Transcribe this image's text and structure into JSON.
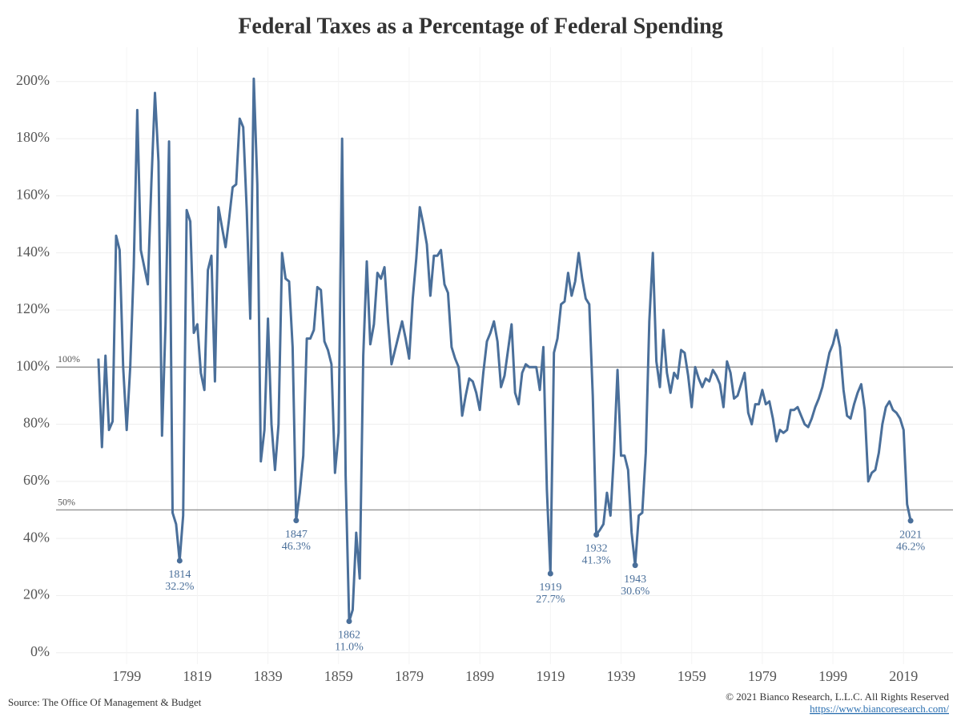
{
  "chart_data": {
    "type": "line",
    "title": "Federal Taxes as a Percentage of Federal Spending",
    "source": "Source: The Office Of Management & Budget",
    "copyright": "© 2021 Bianco Research, L.L.C. All Rights Reserved",
    "url": "https://www.biancoresearch.com/",
    "color": "#4a6f9a",
    "grid": true,
    "xlim": [
      1779,
      2033
    ],
    "ylim": [
      -4,
      212
    ],
    "xticks": [
      1799,
      1819,
      1839,
      1859,
      1879,
      1899,
      1919,
      1939,
      1959,
      1979,
      1999,
      2019
    ],
    "yticks": [
      {
        "value": 0,
        "label": "0%"
      },
      {
        "value": 20,
        "label": "20%"
      },
      {
        "value": 40,
        "label": "40%"
      },
      {
        "value": 60,
        "label": "60%"
      },
      {
        "value": 80,
        "label": "80%"
      },
      {
        "value": 100,
        "label": "100%"
      },
      {
        "value": 120,
        "label": "120%"
      },
      {
        "value": 140,
        "label": "140%"
      },
      {
        "value": 160,
        "label": "160%"
      },
      {
        "value": 180,
        "label": "180%"
      },
      {
        "value": 200,
        "label": "200%"
      }
    ],
    "reference_lines": [
      {
        "value": 100,
        "label": "100%"
      },
      {
        "value": 50,
        "label": "50%"
      }
    ],
    "annotations": [
      {
        "x": 1814,
        "y": 32.2,
        "y_label": "32.2%"
      },
      {
        "x": 1847,
        "y": 46.3,
        "y_label": "46.3%"
      },
      {
        "x": 1862,
        "y": 11.0,
        "y_label": "11.0%"
      },
      {
        "x": 1919,
        "y": 27.7,
        "y_label": "27.7%"
      },
      {
        "x": 1932,
        "y": 41.3,
        "y_label": "41.3%"
      },
      {
        "x": 1943,
        "y": 30.6,
        "y_label": "30.6%"
      },
      {
        "x": 2021,
        "y": 46.2,
        "y_label": "46.2%"
      }
    ],
    "x": [
      1791,
      1792,
      1793,
      1794,
      1795,
      1796,
      1797,
      1798,
      1799,
      1800,
      1801,
      1802,
      1803,
      1804,
      1805,
      1806,
      1807,
      1808,
      1809,
      1810,
      1811,
      1812,
      1813,
      1814,
      1815,
      1816,
      1817,
      1818,
      1819,
      1820,
      1821,
      1822,
      1823,
      1824,
      1825,
      1826,
      1827,
      1828,
      1829,
      1830,
      1831,
      1832,
      1833,
      1834,
      1835,
      1836,
      1837,
      1838,
      1839,
      1840,
      1841,
      1842,
      1843,
      1844,
      1845,
      1846,
      1847,
      1848,
      1849,
      1850,
      1851,
      1852,
      1853,
      1854,
      1855,
      1856,
      1857,
      1858,
      1859,
      1860,
      1861,
      1862,
      1863,
      1864,
      1865,
      1866,
      1867,
      1868,
      1869,
      1870,
      1871,
      1872,
      1873,
      1874,
      1875,
      1876,
      1877,
      1878,
      1879,
      1880,
      1881,
      1882,
      1883,
      1884,
      1885,
      1886,
      1887,
      1888,
      1889,
      1890,
      1891,
      1892,
      1893,
      1894,
      1895,
      1896,
      1897,
      1898,
      1899,
      1900,
      1901,
      1902,
      1903,
      1904,
      1905,
      1906,
      1907,
      1908,
      1909,
      1910,
      1911,
      1912,
      1913,
      1914,
      1915,
      1916,
      1917,
      1918,
      1919,
      1920,
      1921,
      1922,
      1923,
      1924,
      1925,
      1926,
      1927,
      1928,
      1929,
      1930,
      1931,
      1932,
      1933,
      1934,
      1935,
      1936,
      1937,
      1938,
      1939,
      1940,
      1941,
      1942,
      1943,
      1944,
      1945,
      1946,
      1947,
      1948,
      1949,
      1950,
      1951,
      1952,
      1953,
      1954,
      1955,
      1956,
      1957,
      1958,
      1959,
      1960,
      1961,
      1962,
      1963,
      1964,
      1965,
      1966,
      1967,
      1968,
      1969,
      1970,
      1971,
      1972,
      1973,
      1974,
      1975,
      1976,
      1977,
      1978,
      1979,
      1980,
      1981,
      1982,
      1983,
      1984,
      1985,
      1986,
      1987,
      1988,
      1989,
      1990,
      1991,
      1992,
      1993,
      1994,
      1995,
      1996,
      1997,
      1998,
      1999,
      2000,
      2001,
      2002,
      2003,
      2004,
      2005,
      2006,
      2007,
      2008,
      2009,
      2010,
      2011,
      2012,
      2013,
      2014,
      2015,
      2016,
      2017,
      2018,
      2019,
      2020,
      2021
    ],
    "values": [
      103,
      72,
      104,
      78,
      81,
      146,
      141,
      100,
      78,
      100,
      135,
      190,
      141,
      135,
      129,
      165,
      196,
      172,
      76,
      115,
      179,
      49,
      45,
      32.2,
      48,
      155,
      151,
      112,
      115,
      98,
      92,
      134,
      139,
      95,
      156,
      149,
      142,
      152,
      163,
      164,
      187,
      184,
      155,
      117,
      201,
      164,
      67,
      78,
      117,
      80,
      64,
      80,
      140,
      131,
      130,
      107,
      46.3,
      56,
      69,
      110,
      110,
      113,
      128,
      127,
      109,
      106,
      101,
      63,
      77,
      180,
      62,
      11.0,
      15,
      42,
      26,
      104,
      137,
      108,
      115,
      133,
      131,
      135,
      116,
      101,
      106,
      111,
      116,
      110,
      103,
      124,
      138,
      156,
      150,
      143,
      125,
      139,
      139,
      141,
      129,
      126,
      107,
      103,
      100,
      83,
      90,
      96,
      95,
      91,
      85,
      98,
      109,
      112,
      116,
      109,
      93,
      97,
      106,
      115,
      91,
      87,
      98,
      101,
      100,
      100,
      100,
      92,
      107,
      57,
      27.7,
      105,
      110,
      122,
      123,
      133,
      125,
      130,
      140,
      131,
      124,
      122,
      90,
      41.3,
      43,
      45,
      56,
      48,
      70,
      99,
      69,
      69,
      64,
      42,
      30.6,
      48,
      49,
      70,
      116,
      140,
      102,
      93,
      113,
      98,
      91,
      98,
      96,
      106,
      105,
      97,
      86,
      100,
      96,
      93,
      96,
      95,
      99,
      97,
      94,
      86,
      102,
      98,
      89,
      90,
      94,
      98,
      84,
      80,
      87,
      87,
      92,
      87,
      88,
      82,
      74,
      78,
      77,
      78,
      85,
      85,
      86,
      83,
      80,
      79,
      82,
      86,
      89,
      93,
      99,
      105,
      108,
      113,
      107,
      92,
      83,
      82,
      87,
      91,
      94,
      85,
      60,
      63,
      64,
      70,
      80,
      86,
      88,
      85,
      84,
      82,
      78,
      52,
      46.2
    ]
  }
}
